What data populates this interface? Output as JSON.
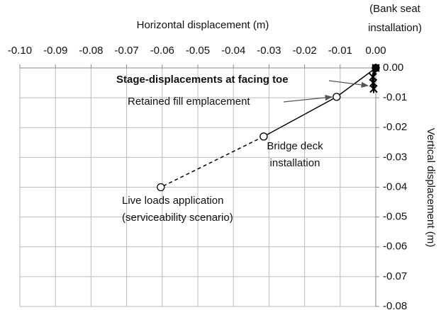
{
  "chart_data": {
    "type": "scatter",
    "x_label": "Horizontal displacement (m)",
    "y_label": "Vertical displacement (m)",
    "xlim": [
      -0.1,
      0
    ],
    "ylim": [
      -0.08,
      0
    ],
    "xticks": [
      {
        "value": -0.1,
        "label": "-0.10"
      },
      -0.09,
      -0.08,
      -0.07,
      -0.06,
      -0.05,
      -0.04,
      -0.03,
      -0.02,
      -0.01,
      {
        "value": 0,
        "label": "0.00"
      }
    ],
    "yticks": [
      {
        "value": 0,
        "label": "0.00"
      },
      -0.01,
      -0.02,
      -0.03,
      -0.04,
      -0.05,
      -0.06,
      -0.07,
      -0.08
    ],
    "grid": true,
    "series": [
      {
        "color": "#000000",
        "marker": "square",
        "line": "none",
        "x": [
          0
        ],
        "y": [
          0
        ]
      },
      {
        "color": "#000000",
        "marker": "asterisk",
        "line": "thick",
        "x": [
          0,
          -0.0008,
          -0.0007,
          -0.0006
        ],
        "y": [
          0,
          -0.003,
          -0.005,
          -0.007
        ]
      },
      {
        "color": "#000000",
        "marker": "circle",
        "line": "solid",
        "x": [
          0,
          -0.011,
          -0.0315
        ],
        "y": [
          0,
          -0.0097,
          -0.023
        ]
      },
      {
        "color": "#000000",
        "marker": "circle",
        "line": "dashed",
        "x": [
          -0.0315,
          -0.0604
        ],
        "y": [
          -0.023,
          -0.04
        ]
      }
    ],
    "annotations": [
      {
        "lines": [
          "(Bank seat",
          "installation)"
        ]
      },
      {
        "lines": [
          "Stage-displacements at facing toe"
        ],
        "bold": true
      },
      {
        "lines": [
          "Retained fill emplacement"
        ]
      },
      {
        "lines": [
          "Bridge deck",
          "installation"
        ]
      },
      {
        "lines": [
          "Live loads application",
          "(serviceability scenario)"
        ]
      }
    ]
  }
}
